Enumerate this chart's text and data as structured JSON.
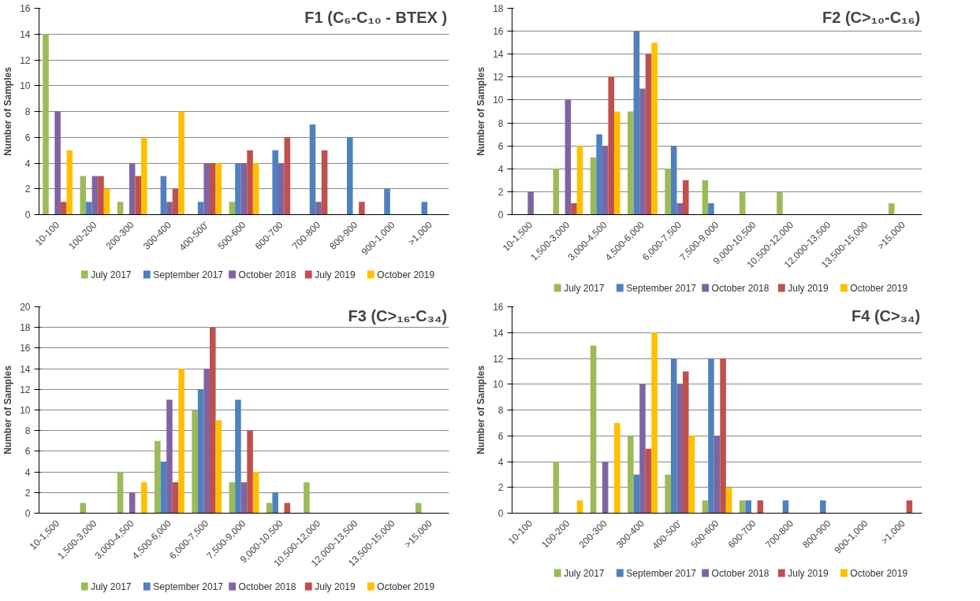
{
  "chart_data": [
    {
      "type": "bar",
      "title": "F1 (C₆-C₁₀ - BTEX )",
      "ylabel": "Number of Samples",
      "categories": [
        "10-100",
        "100-200",
        "200-300",
        "300-400",
        "400-500'",
        "500-600",
        "600-700",
        "700-800",
        "800-900",
        "900-1,000",
        ">1,000"
      ],
      "ylim": [
        0,
        16
      ],
      "yticks": [
        0,
        2,
        4,
        6,
        8,
        10,
        12,
        14,
        16
      ],
      "grid": "y",
      "legend": "bottom",
      "series": [
        {
          "name": "July 2017",
          "color": "#9bbb59",
          "values": [
            14,
            3,
            1,
            0,
            0,
            1,
            0,
            0,
            0,
            0,
            0
          ]
        },
        {
          "name": "September 2017",
          "color": "#4f81bd",
          "values": [
            0,
            1,
            0,
            3,
            1,
            4,
            5,
            7,
            6,
            2,
            1
          ]
        },
        {
          "name": "October 2018",
          "color": "#8064a2",
          "values": [
            8,
            3,
            4,
            1,
            4,
            4,
            4,
            1,
            0,
            0,
            0
          ]
        },
        {
          "name": "July 2019",
          "color": "#c0504d",
          "values": [
            1,
            3,
            3,
            2,
            4,
            5,
            6,
            5,
            1,
            0,
            0
          ]
        },
        {
          "name": "October 2019",
          "color": "#ffc000",
          "values": [
            5,
            2,
            6,
            8,
            4,
            4,
            0,
            0,
            0,
            0,
            0
          ]
        }
      ]
    },
    {
      "type": "bar",
      "title": "F2 (C>₁₀-C₁₆)",
      "ylabel": "Number of Samples",
      "categories": [
        "10-1,500",
        "1,500-3,000",
        "3,000-4,500",
        "4,500-6,000",
        "6,000-7,500",
        "7,500-9,000",
        "9,000-10,500",
        "10,500-12,000",
        "12,000-13,500",
        "13,500-15,000",
        ">15,000"
      ],
      "ylim": [
        0,
        18
      ],
      "yticks": [
        0,
        2,
        4,
        6,
        8,
        10,
        12,
        14,
        16,
        18
      ],
      "grid": "y",
      "legend": "bottom",
      "series": [
        {
          "name": "July 2017",
          "color": "#9bbb59",
          "values": [
            0,
            4,
            5,
            9,
            4,
            3,
            2,
            2,
            0,
            0,
            1
          ]
        },
        {
          "name": "September 2017",
          "color": "#4f81bd",
          "values": [
            0,
            0,
            7,
            16,
            6,
            1,
            0,
            0,
            0,
            0,
            0
          ]
        },
        {
          "name": "October 2018",
          "color": "#8064a2",
          "values": [
            2,
            10,
            6,
            11,
            1,
            0,
            0,
            0,
            0,
            0,
            0
          ]
        },
        {
          "name": "July 2019",
          "color": "#c0504d",
          "values": [
            0,
            1,
            12,
            14,
            3,
            0,
            0,
            0,
            0,
            0,
            0
          ]
        },
        {
          "name": "October 2019",
          "color": "#ffc000",
          "values": [
            0,
            6,
            9,
            15,
            0,
            0,
            0,
            0,
            0,
            0,
            0
          ]
        }
      ]
    },
    {
      "type": "bar",
      "title": "F3 (C>₁₆-C₃₄)",
      "ylabel": "Number of Samples",
      "categories": [
        "10-1,500",
        "1,500-3,000",
        "3,000-4,500",
        "4,500-6,000",
        "6,000-7,500",
        "7,500-9,000",
        "9,000-10,500",
        "10,500-12,000",
        "12,000-13,500",
        "13,500-15,000",
        ">15,000"
      ],
      "ylim": [
        0,
        20
      ],
      "yticks": [
        0,
        2,
        4,
        6,
        8,
        10,
        12,
        14,
        16,
        18,
        20
      ],
      "grid": "y",
      "legend": "bottom",
      "series": [
        {
          "name": "July 2017",
          "color": "#9bbb59",
          "values": [
            0,
            1,
            4,
            7,
            10,
            3,
            1,
            3,
            0,
            0,
            1
          ]
        },
        {
          "name": "September 2017",
          "color": "#4f81bd",
          "values": [
            0,
            0,
            0,
            5,
            12,
            11,
            2,
            0,
            0,
            0,
            0
          ]
        },
        {
          "name": "October 2018",
          "color": "#8064a2",
          "values": [
            0,
            0,
            2,
            11,
            14,
            3,
            0,
            0,
            0,
            0,
            0
          ]
        },
        {
          "name": "July 2019",
          "color": "#c0504d",
          "values": [
            0,
            0,
            0,
            3,
            18,
            8,
            1,
            0,
            0,
            0,
            0
          ]
        },
        {
          "name": "October 2019",
          "color": "#ffc000",
          "values": [
            0,
            0,
            3,
            14,
            9,
            4,
            0,
            0,
            0,
            0,
            0
          ]
        }
      ]
    },
    {
      "type": "bar",
      "title": "F4 (C>₃₄)",
      "ylabel": "Number of Samples",
      "categories": [
        "10-100",
        "100-200",
        "200-300",
        "300-400",
        "400-500'",
        "500-600",
        "600-700",
        "700-800",
        "800-900",
        "900-1,000",
        ">1,000"
      ],
      "ylim": [
        0,
        16
      ],
      "yticks": [
        0,
        2,
        4,
        6,
        8,
        10,
        12,
        14,
        16
      ],
      "grid": "y",
      "legend": "bottom",
      "series": [
        {
          "name": "July 2017",
          "color": "#9bbb59",
          "values": [
            0,
            4,
            13,
            6,
            3,
            1,
            1,
            0,
            0,
            0,
            0
          ]
        },
        {
          "name": "September 2017",
          "color": "#4f81bd",
          "values": [
            0,
            0,
            0,
            3,
            12,
            12,
            1,
            1,
            1,
            0,
            0
          ]
        },
        {
          "name": "October 2018",
          "color": "#8064a2",
          "values": [
            0,
            0,
            4,
            10,
            10,
            6,
            0,
            0,
            0,
            0,
            0
          ]
        },
        {
          "name": "July 2019",
          "color": "#c0504d",
          "values": [
            0,
            0,
            0,
            5,
            11,
            12,
            1,
            0,
            0,
            0,
            1
          ]
        },
        {
          "name": "October 2019",
          "color": "#ffc000",
          "values": [
            0,
            1,
            7,
            14,
            6,
            2,
            0,
            0,
            0,
            0,
            0
          ]
        }
      ]
    }
  ]
}
